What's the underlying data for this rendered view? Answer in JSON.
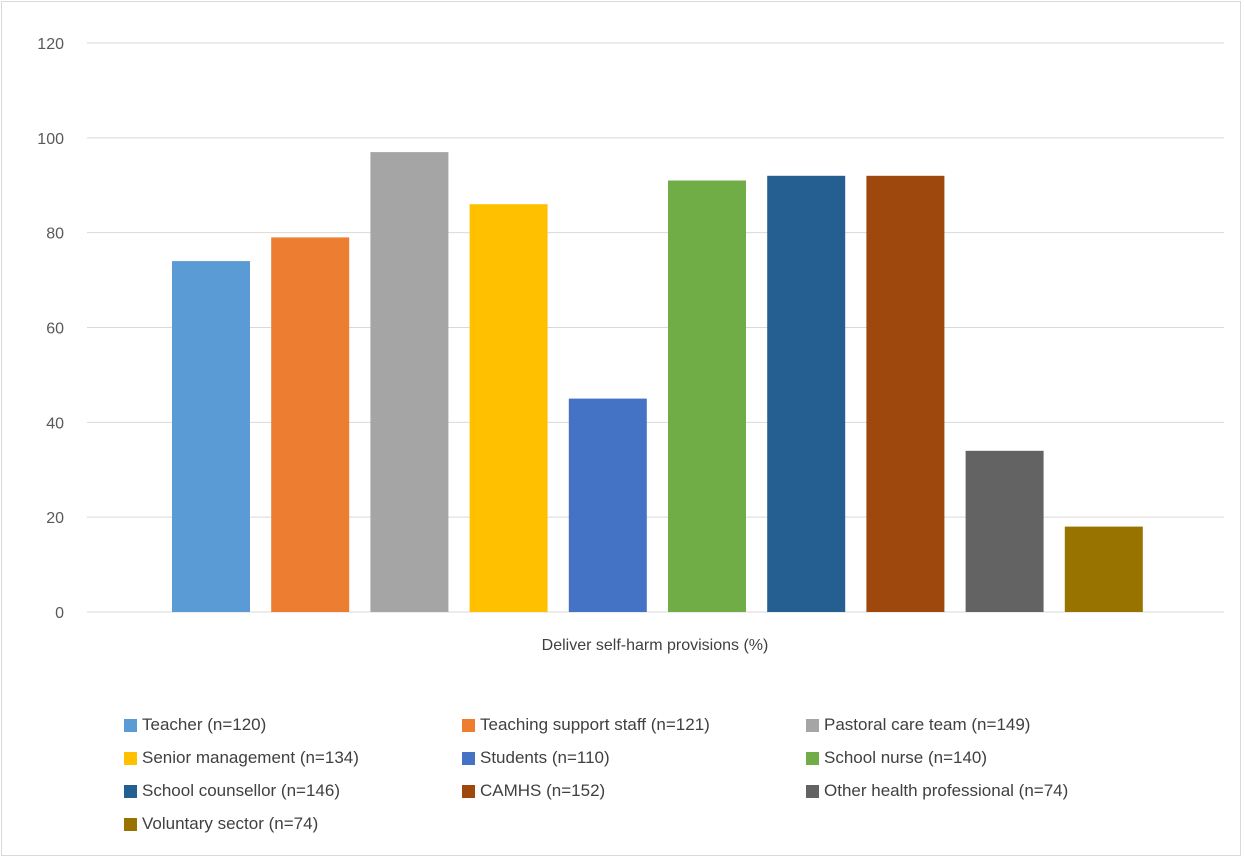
{
  "chart_data": {
    "type": "bar",
    "xlabel": "Deliver self-harm provisions (%)",
    "ylim": [
      0,
      120
    ],
    "yticks": [
      0,
      20,
      40,
      60,
      80,
      100,
      120
    ],
    "grid": true,
    "legend_position": "bottom",
    "series": [
      {
        "name": "Teacher (n=120)",
        "value": 74,
        "color": "#5b9bd5"
      },
      {
        "name": "Teaching support staff (n=121)",
        "value": 79,
        "color": "#ed7d31"
      },
      {
        "name": "Pastoral care team (n=149)",
        "value": 97,
        "color": "#a5a5a5"
      },
      {
        "name": "Senior management (n=134)",
        "value": 86,
        "color": "#ffc000"
      },
      {
        "name": "Students (n=110)",
        "value": 45,
        "color": "#4472c4"
      },
      {
        "name": "School nurse (n=140)",
        "value": 91,
        "color": "#70ad47"
      },
      {
        "name": "School counsellor (n=146)",
        "value": 92,
        "color": "#255e91"
      },
      {
        "name": "CAMHS (n=152)",
        "value": 92,
        "color": "#9e480e"
      },
      {
        "name": "Other health professional (n=74)",
        "value": 34,
        "color": "#636363"
      },
      {
        "name": "Voluntary sector (n=74)",
        "value": 18,
        "color": "#997300"
      }
    ]
  }
}
